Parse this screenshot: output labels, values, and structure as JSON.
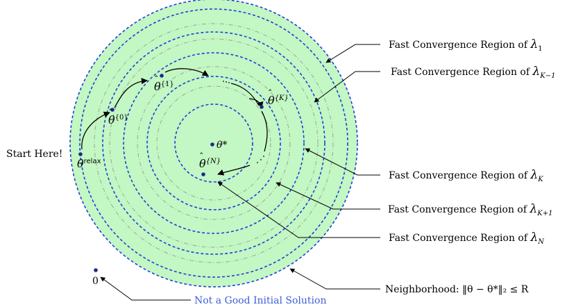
{
  "diagram": {
    "start_label": "Start Here!",
    "origin_label": "0",
    "origin_note": "Not a Good Initial Solution",
    "optimum_label": "θ*",
    "points": {
      "relax": "θ",
      "relax_sup": "relax",
      "p0": "θ",
      "p0_sup": "{0}",
      "p1": "θ",
      "p1_sup": "{1}",
      "pK": "θ",
      "pK_sup": "{K}",
      "pN": "θ",
      "pN_sup": "{N}"
    },
    "regions": [
      {
        "prefix": "Fast Convergence Region of ",
        "symbol": "λ",
        "sub": "1"
      },
      {
        "prefix": "Fast Convergence Region of ",
        "symbol": "λ",
        "sub": "K−1"
      },
      {
        "prefix": "Fast Convergence Region of ",
        "symbol": "λ",
        "sub": "K"
      },
      {
        "prefix": "Fast Convergence Region of ",
        "symbol": "λ",
        "sub": "K+1"
      },
      {
        "prefix": "Fast Convergence Region of ",
        "symbol": "λ",
        "sub": "N"
      }
    ],
    "neighborhood_label": "Neighborhood: ‖θ − θ*‖₂ ≤ R",
    "colors": {
      "fill": "#c3f7c3",
      "blue_circle": "#1f3fdb",
      "gray_circle": "#9aa89a",
      "note": "#3d5fd8",
      "point": "#1a2a8c"
    }
  }
}
